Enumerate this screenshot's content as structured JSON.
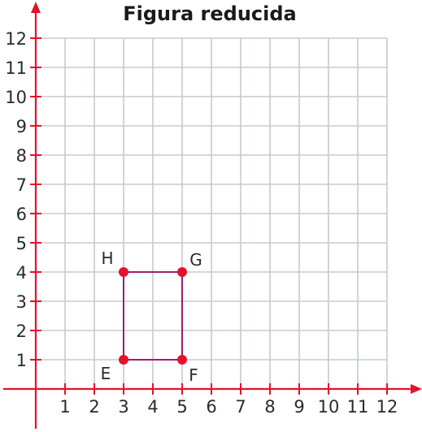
{
  "title": "Figura reducida",
  "chart_data": {
    "type": "scatter",
    "title": "Figura reducida",
    "xlim": [
      0,
      12
    ],
    "ylim": [
      0,
      12
    ],
    "grid": true,
    "x_ticks": [
      "1",
      "2",
      "3",
      "4",
      "5",
      "6",
      "7",
      "8",
      "9",
      "10",
      "11",
      "12"
    ],
    "y_ticks": [
      "1",
      "2",
      "3",
      "4",
      "5",
      "6",
      "7",
      "8",
      "9",
      "10",
      "11",
      "12"
    ],
    "points": [
      {
        "label": "E",
        "x": 3,
        "y": 1
      },
      {
        "label": "F",
        "x": 5,
        "y": 1
      },
      {
        "label": "G",
        "x": 5,
        "y": 4
      },
      {
        "label": "H",
        "x": 3,
        "y": 4
      }
    ],
    "polygon": [
      "E",
      "F",
      "G",
      "H"
    ]
  },
  "colors": {
    "axis": "#e3122b",
    "grid": "#c7cad3",
    "polygon": "#9c1f6e",
    "point": "#e3122b"
  }
}
